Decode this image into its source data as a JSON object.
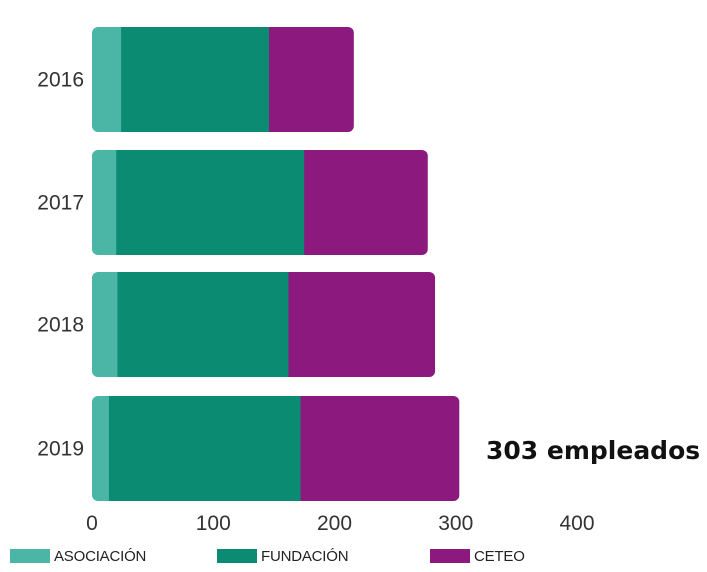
{
  "chart_data": {
    "type": "bar",
    "orientation": "horizontal",
    "stacked": true,
    "categories": [
      "2016",
      "2017",
      "2018",
      "2019"
    ],
    "series": [
      {
        "name": "ASOCIACIÓN",
        "color": "#4bb5a6",
        "values": [
          24,
          20,
          21,
          14
        ]
      },
      {
        "name": "FUNDACIÓN",
        "color": "#0b8b72",
        "values": [
          122,
          155,
          141,
          158
        ]
      },
      {
        "name": "CETEO",
        "color": "#8c1a7e",
        "values": [
          70,
          102,
          121,
          131
        ]
      }
    ],
    "x_ticks": [
      "0",
      "100",
      "200",
      "300",
      "400"
    ],
    "xlim": [
      0,
      400
    ],
    "grid": false,
    "legend_position": "bottom",
    "annotation": "303 empleados",
    "annotation_category": "2019"
  }
}
